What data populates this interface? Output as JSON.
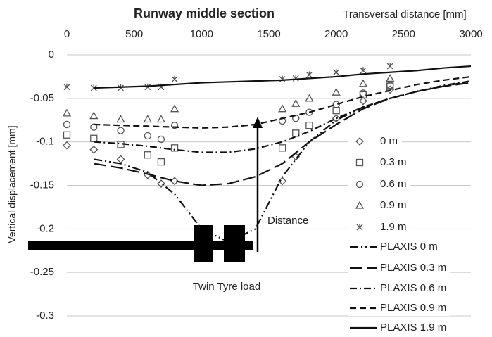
{
  "chart_data": {
    "type": "line",
    "title": "Runway middle section",
    "x_label": "Transversal distance [mm]",
    "y_label": "Vertical displacement [mm]",
    "xlim": [
      0,
      3000
    ],
    "xticks": [
      0,
      500,
      1000,
      1500,
      2000,
      2500,
      3000
    ],
    "ylim": [
      -0.3,
      0
    ],
    "yticks": [
      0,
      -0.05,
      -0.1,
      -0.15,
      -0.2,
      -0.25,
      -0.3
    ],
    "grid": true,
    "legend": "right",
    "annotations": [
      "Distance",
      "Twin Tyre load"
    ],
    "series": [
      {
        "name": "0 m",
        "color": "#555555",
        "marker": "diamond",
        "line": "none",
        "x": [
          0,
          200,
          400,
          600,
          700,
          800,
          1600,
          1700,
          2000,
          2200,
          2400
        ],
        "values": [
          -0.104,
          -0.109,
          -0.12,
          -0.138,
          -0.148,
          -0.145,
          -0.145,
          -0.117,
          -0.073,
          -0.053,
          -0.04
        ]
      },
      {
        "name": "0.3 m",
        "color": "#555555",
        "marker": "square",
        "line": "none",
        "x": [
          0,
          200,
          400,
          600,
          700,
          800,
          1600,
          1700,
          1800,
          2000,
          2200,
          2400
        ],
        "values": [
          -0.092,
          -0.096,
          -0.103,
          -0.115,
          -0.123,
          -0.107,
          -0.107,
          -0.09,
          -0.081,
          -0.064,
          -0.046,
          -0.036
        ]
      },
      {
        "name": "0.6 m",
        "color": "#555555",
        "marker": "circle",
        "line": "none",
        "x": [
          0,
          200,
          400,
          600,
          700,
          800,
          1600,
          1700,
          1800,
          2000,
          2200,
          2400
        ],
        "values": [
          -0.08,
          -0.083,
          -0.087,
          -0.093,
          -0.097,
          -0.081,
          -0.076,
          -0.073,
          -0.066,
          -0.057,
          -0.044,
          -0.035
        ]
      },
      {
        "name": "0.9 m",
        "color": "#555555",
        "marker": "triangle",
        "line": "none",
        "x": [
          0,
          200,
          400,
          600,
          700,
          800,
          1600,
          1700,
          1800,
          2000,
          2200,
          2400
        ],
        "values": [
          -0.067,
          -0.07,
          -0.074,
          -0.074,
          -0.074,
          -0.062,
          -0.062,
          -0.056,
          -0.05,
          -0.043,
          -0.033,
          -0.027
        ]
      },
      {
        "name": "1.9 m",
        "color": "#555555",
        "marker": "cross",
        "line": "none",
        "x": [
          0,
          200,
          400,
          600,
          700,
          800,
          1600,
          1700,
          1800,
          2000,
          2200,
          2400
        ],
        "values": [
          -0.037,
          -0.038,
          -0.038,
          -0.037,
          -0.037,
          -0.028,
          -0.028,
          -0.027,
          -0.023,
          -0.02,
          -0.018,
          -0.013
        ]
      },
      {
        "name": "PLAXIS 0 m",
        "color": "#111111",
        "marker": "none",
        "line": "dashdotdot",
        "x": [
          200,
          400,
          600,
          800,
          1000,
          1200,
          1400,
          1600,
          1800,
          2000,
          2200,
          2400,
          2600,
          2800,
          3000
        ],
        "values": [
          -0.12,
          -0.125,
          -0.135,
          -0.16,
          -0.2,
          -0.215,
          -0.2,
          -0.14,
          -0.1,
          -0.075,
          -0.06,
          -0.05,
          -0.042,
          -0.036,
          -0.03
        ]
      },
      {
        "name": "PLAXIS 0.3 m",
        "color": "#111111",
        "marker": "none",
        "line": "longdash",
        "x": [
          200,
          400,
          600,
          800,
          1000,
          1200,
          1400,
          1600,
          1800,
          2000,
          2200,
          2400,
          2600,
          2800,
          3000
        ],
        "values": [
          -0.125,
          -0.13,
          -0.137,
          -0.145,
          -0.15,
          -0.148,
          -0.14,
          -0.125,
          -0.1,
          -0.08,
          -0.062,
          -0.05,
          -0.042,
          -0.036,
          -0.032
        ]
      },
      {
        "name": "PLAXIS 0.6 m",
        "color": "#111111",
        "marker": "none",
        "line": "dashdot",
        "x": [
          200,
          400,
          600,
          800,
          1000,
          1200,
          1400,
          1600,
          1800,
          2000,
          2200,
          2400,
          2600,
          2800,
          3000
        ],
        "values": [
          -0.1,
          -0.102,
          -0.105,
          -0.109,
          -0.112,
          -0.112,
          -0.108,
          -0.1,
          -0.088,
          -0.073,
          -0.06,
          -0.05,
          -0.042,
          -0.035,
          -0.03
        ]
      },
      {
        "name": "PLAXIS 0.9 m",
        "color": "#111111",
        "marker": "none",
        "line": "dash",
        "x": [
          200,
          400,
          600,
          800,
          1000,
          1200,
          1400,
          1600,
          1800,
          2000,
          2200,
          2400,
          2600,
          2800,
          3000
        ],
        "values": [
          -0.08,
          -0.081,
          -0.082,
          -0.083,
          -0.084,
          -0.083,
          -0.08,
          -0.073,
          -0.066,
          -0.057,
          -0.048,
          -0.041,
          -0.034,
          -0.029,
          -0.025
        ]
      },
      {
        "name": "PLAXIS 1.9 m",
        "color": "#111111",
        "marker": "none",
        "line": "solid",
        "x": [
          200,
          400,
          600,
          800,
          1000,
          1200,
          1400,
          1600,
          1800,
          2000,
          2200,
          2400,
          2600,
          2800,
          3000
        ],
        "values": [
          -0.038,
          -0.037,
          -0.036,
          -0.034,
          -0.032,
          -0.031,
          -0.03,
          -0.029,
          -0.027,
          -0.025,
          -0.022,
          -0.02,
          -0.018,
          -0.015,
          -0.013
        ]
      }
    ]
  }
}
